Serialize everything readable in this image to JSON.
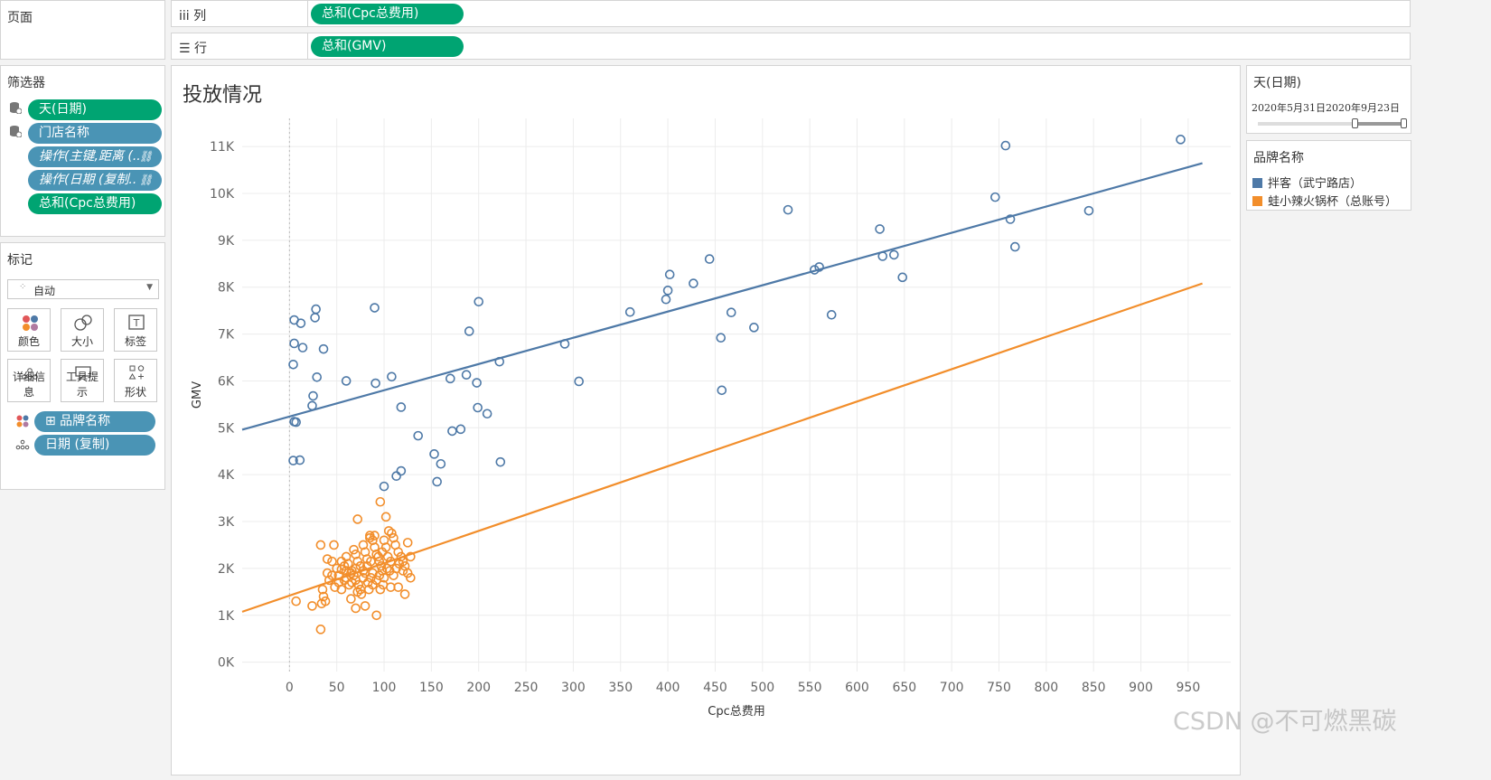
{
  "pages_panel": {
    "title": "页面"
  },
  "shelves": {
    "columns": {
      "icon": "iii",
      "label": "列",
      "pill": "总和(Cpc总费用)"
    },
    "rows": {
      "icon": "☰",
      "label": "行",
      "pill": "总和(GMV)"
    }
  },
  "filters": {
    "title": "筛选器",
    "items": [
      {
        "label": "天(日期)",
        "color": "green",
        "icon": "database-icon"
      },
      {
        "label": "门店名称",
        "color": "blue",
        "icon": "database-icon"
      },
      {
        "label": "操作(主键,距离 (..",
        "color": "blue",
        "italic": true,
        "icon": "link-icon"
      },
      {
        "label": "操作(日期 (复制..",
        "color": "blue",
        "italic": true,
        "icon": "link-icon"
      },
      {
        "label": "总和(Cpc总费用)",
        "color": "green"
      }
    ]
  },
  "marks": {
    "title": "标记",
    "type_select": "自动",
    "buttons": [
      {
        "label": "颜色",
        "icon": "color-icon"
      },
      {
        "label": "大小",
        "icon": "size-icon"
      },
      {
        "label": "标签",
        "icon": "label-icon"
      },
      {
        "label": "详细信息",
        "icon": "detail-icon"
      },
      {
        "label": "工具提示",
        "icon": "tooltip-icon"
      },
      {
        "label": "形状",
        "icon": "shape-icon"
      }
    ],
    "fields": [
      {
        "label": "⊞ 品牌名称",
        "icon": "color-icon"
      },
      {
        "label": "日期 (复制)",
        "icon": "detail-icon"
      }
    ]
  },
  "date_filter": {
    "title": "天(日期)",
    "range_text": "2020年5月31日2020年9月23日"
  },
  "legend": {
    "title": "品牌名称",
    "items": [
      {
        "label": "拌客（武宁路店）",
        "color": "#4e79a7"
      },
      {
        "label": "蛙小辣火锅杯（总账号）",
        "color": "#f28e2b"
      }
    ]
  },
  "watermark": "CSDN @不可燃黑碳",
  "chart_data": {
    "type": "scatter",
    "title": "投放情况",
    "xlabel": "Cpc总费用",
    "ylabel": "GMV",
    "xlim": [
      -50,
      995
    ],
    "ylim": [
      -200,
      11600
    ],
    "x_ticks": [
      0,
      50,
      100,
      150,
      200,
      250,
      300,
      350,
      400,
      450,
      500,
      550,
      600,
      650,
      700,
      750,
      800,
      850,
      900,
      950
    ],
    "y_ticks": [
      0,
      1000,
      2000,
      3000,
      4000,
      5000,
      6000,
      7000,
      8000,
      9000,
      10000,
      11000
    ],
    "y_tick_labels": [
      "0K",
      "1K",
      "2K",
      "3K",
      "4K",
      "5K",
      "6K",
      "7K",
      "8K",
      "9K",
      "10K",
      "11K"
    ],
    "series": [
      {
        "name": "拌客（武宁路店）",
        "color": "#4e79a7",
        "points": [
          [
            5,
            7300
          ],
          [
            12,
            7230
          ],
          [
            27,
            7350
          ],
          [
            28,
            7530
          ],
          [
            90,
            7560
          ],
          [
            200,
            7690
          ],
          [
            5,
            6800
          ],
          [
            14,
            6710
          ],
          [
            36,
            6680
          ],
          [
            4,
            6350
          ],
          [
            29,
            6080
          ],
          [
            60,
            6000
          ],
          [
            91,
            5950
          ],
          [
            108,
            6090
          ],
          [
            25,
            5680
          ],
          [
            24,
            5470
          ],
          [
            118,
            5440
          ],
          [
            5,
            5130
          ],
          [
            7,
            5120
          ],
          [
            4,
            4300
          ],
          [
            11,
            4310
          ],
          [
            136,
            4830
          ],
          [
            170,
            6050
          ],
          [
            187,
            6130
          ],
          [
            198,
            5960
          ],
          [
            199,
            5430
          ],
          [
            209,
            5300
          ],
          [
            222,
            6410
          ],
          [
            190,
            7060
          ],
          [
            153,
            4440
          ],
          [
            160,
            4230
          ],
          [
            156,
            3850
          ],
          [
            100,
            3750
          ],
          [
            113,
            3970
          ],
          [
            118,
            4080
          ],
          [
            172,
            4930
          ],
          [
            181,
            4970
          ],
          [
            223,
            4270
          ],
          [
            291,
            6790
          ],
          [
            306,
            5990
          ],
          [
            360,
            7470
          ],
          [
            398,
            7740
          ],
          [
            400,
            7930
          ],
          [
            402,
            8270
          ],
          [
            427,
            8080
          ],
          [
            444,
            8600
          ],
          [
            456,
            6920
          ],
          [
            457,
            5800
          ],
          [
            467,
            7460
          ],
          [
            491,
            7140
          ],
          [
            527,
            9650
          ],
          [
            555,
            8370
          ],
          [
            560,
            8430
          ],
          [
            573,
            7410
          ],
          [
            624,
            9240
          ],
          [
            627,
            8660
          ],
          [
            639,
            8690
          ],
          [
            648,
            8210
          ],
          [
            746,
            9920
          ],
          [
            757,
            11020
          ],
          [
            762,
            9450
          ],
          [
            767,
            8860
          ],
          [
            845,
            9630
          ],
          [
            942,
            11150
          ]
        ],
        "trend": {
          "slope": 5.6,
          "intercept": 5240
        }
      },
      {
        "name": "蛙小辣火锅杯（总账号）",
        "color": "#f28e2b",
        "points": [
          [
            72,
            3050
          ],
          [
            96,
            3420
          ],
          [
            102,
            3100
          ],
          [
            33,
            2500
          ],
          [
            47,
            2500
          ],
          [
            40,
            2200
          ],
          [
            45,
            2150
          ],
          [
            50,
            2000
          ],
          [
            55,
            1980
          ],
          [
            60,
            2250
          ],
          [
            62,
            2100
          ],
          [
            65,
            1900
          ],
          [
            68,
            2400
          ],
          [
            70,
            2300
          ],
          [
            72,
            2150
          ],
          [
            75,
            2050
          ],
          [
            78,
            2500
          ],
          [
            80,
            2350
          ],
          [
            82,
            2200
          ],
          [
            85,
            2700
          ],
          [
            88,
            2600
          ],
          [
            90,
            2450
          ],
          [
            92,
            2300
          ],
          [
            95,
            2150
          ],
          [
            97,
            2050
          ],
          [
            100,
            2600
          ],
          [
            102,
            2450
          ],
          [
            105,
            2800
          ],
          [
            108,
            2750
          ],
          [
            110,
            2650
          ],
          [
            112,
            2500
          ],
          [
            115,
            2350
          ],
          [
            118,
            2250
          ],
          [
            120,
            2150
          ],
          [
            122,
            2050
          ],
          [
            125,
            2550
          ],
          [
            128,
            2250
          ],
          [
            85,
            2650
          ],
          [
            90,
            2700
          ],
          [
            40,
            1900
          ],
          [
            42,
            1750
          ],
          [
            45,
            1850
          ],
          [
            48,
            1600
          ],
          [
            52,
            1700
          ],
          [
            55,
            1550
          ],
          [
            58,
            1750
          ],
          [
            60,
            1800
          ],
          [
            63,
            1650
          ],
          [
            66,
            1700
          ],
          [
            68,
            1850
          ],
          [
            70,
            1750
          ],
          [
            73,
            1650
          ],
          [
            75,
            1550
          ],
          [
            78,
            1800
          ],
          [
            80,
            1900
          ],
          [
            83,
            1700
          ],
          [
            86,
            1800
          ],
          [
            88,
            1900
          ],
          [
            92,
            1750
          ],
          [
            95,
            1850
          ],
          [
            98,
            1950
          ],
          [
            100,
            1800
          ],
          [
            103,
            2000
          ],
          [
            106,
            1950
          ],
          [
            110,
            1850
          ],
          [
            113,
            2000
          ],
          [
            116,
            2100
          ],
          [
            120,
            1950
          ],
          [
            125,
            1900
          ],
          [
            35,
            1550
          ],
          [
            36,
            1400
          ],
          [
            38,
            1300
          ],
          [
            34,
            1250
          ],
          [
            24,
            1200
          ],
          [
            7,
            1300
          ],
          [
            65,
            1350
          ],
          [
            70,
            1150
          ],
          [
            80,
            1200
          ],
          [
            92,
            1000
          ],
          [
            115,
            1600
          ],
          [
            122,
            1450
          ],
          [
            128,
            1800
          ],
          [
            88,
            1650
          ],
          [
            84,
            1550
          ],
          [
            76,
            1450
          ],
          [
            72,
            1500
          ],
          [
            78,
            1950
          ],
          [
            82,
            2050
          ],
          [
            86,
            2150
          ],
          [
            94,
            2250
          ],
          [
            98,
            2350
          ],
          [
            104,
            2250
          ],
          [
            107,
            2150
          ],
          [
            70,
            2000
          ],
          [
            66,
            1950
          ],
          [
            60,
            1950
          ],
          [
            58,
            2050
          ],
          [
            55,
            2150
          ],
          [
            52,
            1850
          ],
          [
            96,
            1550
          ],
          [
            99,
            1650
          ],
          [
            107,
            1600
          ],
          [
            33,
            700
          ]
        ],
        "trend": {
          "slope": 6.9,
          "intercept": 1420
        }
      }
    ],
    "grid": true,
    "legend_position": "right"
  }
}
